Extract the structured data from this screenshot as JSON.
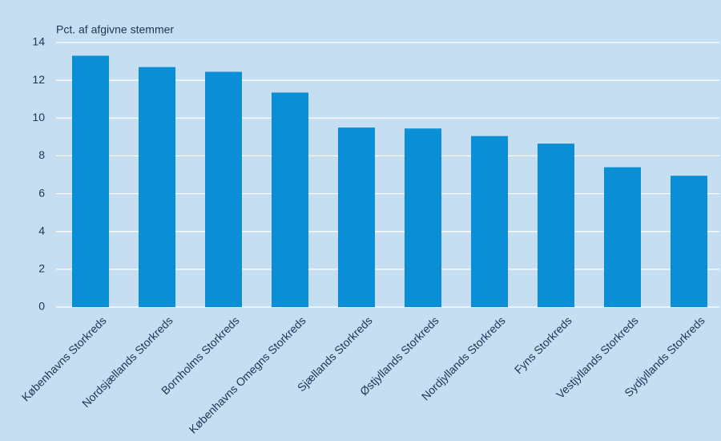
{
  "chart_data": {
    "type": "bar",
    "y_label": "Pct. af afgivne stemmer",
    "categories": [
      "Københavns Storkreds",
      "Nordsjællands Storkreds",
      "Bornholms Storkreds",
      "Københavns Omegns Storkreds",
      "Sjællands Storkreds",
      "Østjyllands Storkreds",
      "Nordjyllands Storkreds",
      "Fyns Storkreds",
      "Vestjyllands Storkreds",
      "Sydjyllands Storkreds"
    ],
    "values": [
      13.3,
      12.7,
      12.45,
      11.35,
      9.5,
      9.45,
      9.05,
      8.65,
      7.4,
      6.95
    ],
    "color": "#0a8fd6",
    "ylim": [
      0,
      14
    ],
    "yticks": [
      0,
      2,
      4,
      6,
      8,
      10,
      12,
      14
    ],
    "grid": true
  }
}
